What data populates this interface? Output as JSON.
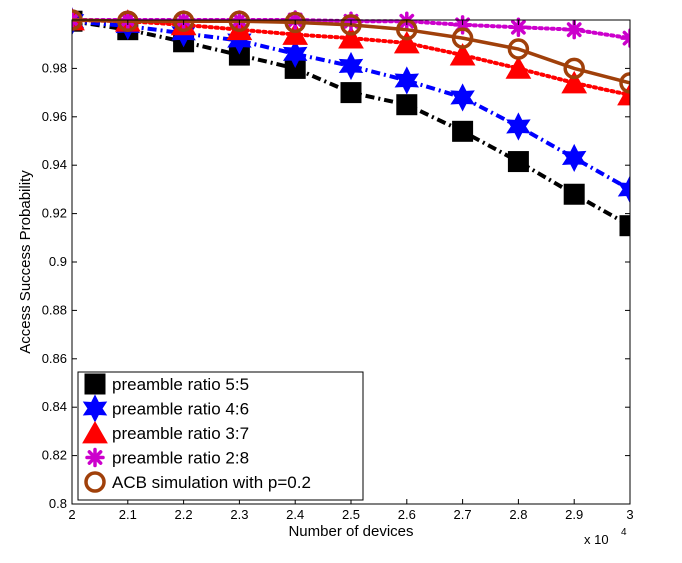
{
  "chart_data": {
    "type": "line",
    "title": "",
    "xlabel": "Number of devices",
    "ylabel": "Access Success Probability",
    "x_multiplier_label": "x 10",
    "x_multiplier_exp": "4",
    "x": [
      2.0,
      2.1,
      2.2,
      2.3,
      2.4,
      2.5,
      2.6,
      2.7,
      2.8,
      2.9,
      3.0
    ],
    "x_tick_labels": [
      "2",
      "2.1",
      "2.2",
      "2.3",
      "2.4",
      "2.5",
      "2.6",
      "2.7",
      "2.8",
      "2.9",
      "3"
    ],
    "xlim": [
      2.0,
      3.0
    ],
    "ylim": [
      0.8,
      1.0
    ],
    "y_ticks": [
      0.8,
      0.82,
      0.84,
      0.86,
      0.88,
      0.9,
      0.92,
      0.94,
      0.96,
      0.98
    ],
    "y_tick_labels": [
      "0.8",
      "0.82",
      "0.84",
      "0.86",
      "0.88",
      "0.9",
      "0.92",
      "0.94",
      "0.96",
      "0.98"
    ],
    "grid": false,
    "legend_position": "bottom-left",
    "series": [
      {
        "name": "preamble ratio 5:5",
        "color": "#000000",
        "marker": "square",
        "line_style": "dash-dot",
        "values": [
          0.9995,
          0.996,
          0.991,
          0.9855,
          0.98,
          0.97,
          0.965,
          0.954,
          0.9415,
          0.928,
          0.915
        ]
      },
      {
        "name": "preamble ratio 4:6",
        "color": "#0000ff",
        "marker": "hexagram",
        "line_style": "dash-dot",
        "values": [
          0.9995,
          0.9975,
          0.9945,
          0.9915,
          0.986,
          0.981,
          0.975,
          0.968,
          0.956,
          0.943,
          0.93
        ]
      },
      {
        "name": "preamble ratio 3:7",
        "color": "#ff0000",
        "marker": "triangle",
        "line_style": "dotted",
        "values": [
          1.0,
          0.9995,
          0.998,
          0.996,
          0.994,
          0.9925,
          0.9905,
          0.9855,
          0.98,
          0.974,
          0.969
        ]
      },
      {
        "name": "preamble ratio 2:8",
        "color": "#cc00cc",
        "marker": "asterisk",
        "line_style": "dotted",
        "values": [
          1.0,
          1.0,
          1.0,
          1.0,
          1.0,
          0.9995,
          0.9995,
          0.998,
          0.997,
          0.996,
          0.9925
        ]
      },
      {
        "name": "ACB simulation with p=0.2",
        "color": "#a0400a",
        "marker": "circle",
        "line_style": "solid",
        "values": [
          1.0,
          0.9995,
          0.9995,
          0.9995,
          0.999,
          0.998,
          0.996,
          0.9925,
          0.988,
          0.98,
          0.974
        ]
      }
    ]
  }
}
